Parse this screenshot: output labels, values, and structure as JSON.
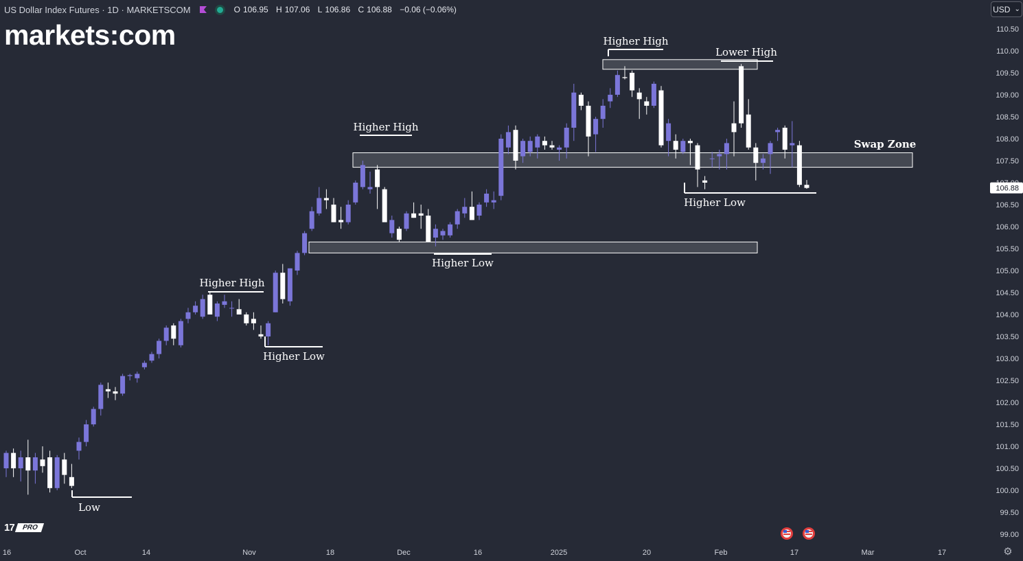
{
  "header": {
    "title": "US Dollar Index Futures · 1D · MARKETSCOM",
    "open_label": "O",
    "open": "106.95",
    "high_label": "H",
    "high": "107.06",
    "low_label": "L",
    "low": "106.86",
    "close_label": "C",
    "close": "106.88",
    "change": "−0.06 (−0.06%)"
  },
  "logo": {
    "text": "markets:com"
  },
  "currency_button": {
    "label": "USD",
    "chevron": "⌄"
  },
  "tv_badge": {
    "mark": "17",
    "pro": "PRO"
  },
  "colors": {
    "background": "#262a36",
    "bull": "#7b76d9",
    "bear": "#ffffff",
    "text": "#d1d4dc"
  },
  "chart_data": {
    "type": "candlestick",
    "ylim": [
      98.85,
      110.9
    ],
    "y_ticks": [
      "110.50",
      "110.00",
      "109.50",
      "109.00",
      "108.50",
      "108.00",
      "107.50",
      "107.00",
      "106.50",
      "106.00",
      "105.50",
      "105.00",
      "104.50",
      "104.00",
      "103.50",
      "103.00",
      "102.50",
      "102.00",
      "101.50",
      "101.00",
      "100.50",
      "100.00",
      "99.50",
      "99.00"
    ],
    "last_price": "106.88",
    "x_labels": [
      "16",
      "Oct",
      "14",
      "Nov",
      "18",
      "Dec",
      "16",
      "2025",
      "20",
      "Feb",
      "17",
      "Mar",
      "17"
    ],
    "candles": [
      [
        100.5,
        100.9,
        100.3,
        100.85
      ],
      [
        100.85,
        100.95,
        100.3,
        100.5
      ],
      [
        100.5,
        100.9,
        100.2,
        100.75
      ],
      [
        100.75,
        101.15,
        99.9,
        100.45
      ],
      [
        100.45,
        100.85,
        100.15,
        100.75
      ],
      [
        100.7,
        101.0,
        100.4,
        100.55
      ],
      [
        100.75,
        100.9,
        99.95,
        100.05
      ],
      [
        100.05,
        100.8,
        100.0,
        100.75
      ],
      [
        100.7,
        100.85,
        100.15,
        100.35
      ],
      [
        100.3,
        100.6,
        100.05,
        100.1
      ],
      [
        100.9,
        101.2,
        100.7,
        101.1
      ],
      [
        101.1,
        101.6,
        101.0,
        101.5
      ],
      [
        101.5,
        101.9,
        101.45,
        101.85
      ],
      [
        101.85,
        102.45,
        101.7,
        102.4
      ],
      [
        102.3,
        102.45,
        102.1,
        102.25
      ],
      [
        102.25,
        102.35,
        102.05,
        102.2
      ],
      [
        102.2,
        102.65,
        102.15,
        102.6
      ],
      [
        102.6,
        102.65,
        102.5,
        102.62
      ],
      [
        102.55,
        102.7,
        102.45,
        102.65
      ],
      [
        102.8,
        102.95,
        102.75,
        102.9
      ],
      [
        102.95,
        103.15,
        102.9,
        103.1
      ],
      [
        103.1,
        103.45,
        103.0,
        103.4
      ],
      [
        103.4,
        103.75,
        103.3,
        103.7
      ],
      [
        103.75,
        103.8,
        103.3,
        103.45
      ],
      [
        103.3,
        103.9,
        103.25,
        103.85
      ],
      [
        103.9,
        104.15,
        103.8,
        104.05
      ],
      [
        104.05,
        104.3,
        104.0,
        104.2
      ],
      [
        103.95,
        104.45,
        103.9,
        104.35
      ],
      [
        104.45,
        104.5,
        104.0,
        104.0
      ],
      [
        103.95,
        104.3,
        103.85,
        104.25
      ],
      [
        104.22,
        104.45,
        104.15,
        104.3
      ],
      [
        104.15,
        104.3,
        103.95,
        104.15
      ],
      [
        104.12,
        104.35,
        104.0,
        104.0
      ],
      [
        104.0,
        104.05,
        103.75,
        103.8
      ],
      [
        103.9,
        104.05,
        103.65,
        103.8
      ],
      [
        103.55,
        103.75,
        103.45,
        103.5
      ],
      [
        103.5,
        103.85,
        103.3,
        103.8
      ],
      [
        104.05,
        105.0,
        104.05,
        104.95
      ],
      [
        104.95,
        105.15,
        104.25,
        104.35
      ],
      [
        104.3,
        105.05,
        104.2,
        105.05
      ],
      [
        105.0,
        105.45,
        104.9,
        105.4
      ],
      [
        105.4,
        105.9,
        105.35,
        105.85
      ],
      [
        105.95,
        106.45,
        105.9,
        106.35
      ],
      [
        106.3,
        106.9,
        106.25,
        106.65
      ],
      [
        106.65,
        106.85,
        106.4,
        106.6
      ],
      [
        106.5,
        106.65,
        106.1,
        106.1
      ],
      [
        106.15,
        106.45,
        105.95,
        106.1
      ],
      [
        106.1,
        106.6,
        106.05,
        106.5
      ],
      [
        106.55,
        107.05,
        106.5,
        107.0
      ],
      [
        106.9,
        107.5,
        106.85,
        107.4
      ],
      [
        106.85,
        107.25,
        106.75,
        106.9
      ],
      [
        107.3,
        107.4,
        106.4,
        106.9
      ],
      [
        106.85,
        106.9,
        106.15,
        106.1
      ],
      [
        105.85,
        106.25,
        105.75,
        106.15
      ],
      [
        105.95,
        106.0,
        105.65,
        105.7
      ],
      [
        105.95,
        106.35,
        105.9,
        106.3
      ],
      [
        106.3,
        106.55,
        106.2,
        106.2
      ],
      [
        106.3,
        106.5,
        105.95,
        106.25
      ],
      [
        106.25,
        106.4,
        105.65,
        105.65
      ],
      [
        105.75,
        106.05,
        105.55,
        105.95
      ],
      [
        105.8,
        105.95,
        105.7,
        105.9
      ],
      [
        105.8,
        106.1,
        105.75,
        106.05
      ],
      [
        106.05,
        106.4,
        105.95,
        106.35
      ],
      [
        106.3,
        106.65,
        106.2,
        106.45
      ],
      [
        106.45,
        106.8,
        106.15,
        106.15
      ],
      [
        106.25,
        106.55,
        106.15,
        106.5
      ],
      [
        106.55,
        106.85,
        106.45,
        106.75
      ],
      [
        106.55,
        106.8,
        106.4,
        106.6
      ],
      [
        106.7,
        108.1,
        106.6,
        108.0
      ],
      [
        107.8,
        108.3,
        107.65,
        108.15
      ],
      [
        108.2,
        108.3,
        107.3,
        107.5
      ],
      [
        107.6,
        108.0,
        107.45,
        107.95
      ],
      [
        107.7,
        108.05,
        107.6,
        107.95
      ],
      [
        107.8,
        108.1,
        107.55,
        108.05
      ],
      [
        107.95,
        108.05,
        107.75,
        107.85
      ],
      [
        107.85,
        107.95,
        107.75,
        107.8
      ],
      [
        107.75,
        107.85,
        107.5,
        107.8
      ],
      [
        107.8,
        108.35,
        107.55,
        108.25
      ],
      [
        108.25,
        109.25,
        107.95,
        109.05
      ],
      [
        109.0,
        109.05,
        108.65,
        108.75
      ],
      [
        108.75,
        108.85,
        107.6,
        108.05
      ],
      [
        108.1,
        108.5,
        107.7,
        108.45
      ],
      [
        108.45,
        108.9,
        108.25,
        108.75
      ],
      [
        108.85,
        109.15,
        108.7,
        109.0
      ],
      [
        109.0,
        109.55,
        108.95,
        109.45
      ],
      [
        109.4,
        109.65,
        109.35,
        109.38
      ],
      [
        109.5,
        109.55,
        108.95,
        109.1
      ],
      [
        109.05,
        109.15,
        108.45,
        108.9
      ],
      [
        108.85,
        108.95,
        108.55,
        108.75
      ],
      [
        108.75,
        109.3,
        108.7,
        109.25
      ],
      [
        109.1,
        109.2,
        107.8,
        107.85
      ],
      [
        107.95,
        108.45,
        107.6,
        108.35
      ],
      [
        107.95,
        108.1,
        107.55,
        107.75
      ],
      [
        107.7,
        108.0,
        107.65,
        107.95
      ],
      [
        107.95,
        108.0,
        107.4,
        107.9
      ],
      [
        107.85,
        107.9,
        106.9,
        107.3
      ],
      [
        107.05,
        107.15,
        106.85,
        107.0
      ],
      [
        107.55,
        107.7,
        107.35,
        107.55
      ],
      [
        107.6,
        107.75,
        107.3,
        107.65
      ],
      [
        107.65,
        108.0,
        107.3,
        107.9
      ],
      [
        108.35,
        108.85,
        107.6,
        108.15
      ],
      [
        109.65,
        109.7,
        108.25,
        108.35
      ],
      [
        108.55,
        108.9,
        107.75,
        107.8
      ],
      [
        107.8,
        107.9,
        107.05,
        107.45
      ],
      [
        107.45,
        107.65,
        107.3,
        107.55
      ],
      [
        107.65,
        107.95,
        107.2,
        107.9
      ],
      [
        108.15,
        108.25,
        107.95,
        108.2
      ],
      [
        108.25,
        108.3,
        107.55,
        107.75
      ],
      [
        107.85,
        108.4,
        107.35,
        107.9
      ],
      [
        107.85,
        107.95,
        106.9,
        106.95
      ],
      [
        106.95,
        107.06,
        106.86,
        106.88
      ]
    ],
    "annotations": [
      {
        "text": "Low"
      },
      {
        "text": "Higher High"
      },
      {
        "text": "Higher Low"
      },
      {
        "text": "Higher High"
      },
      {
        "text": "Higher Low"
      },
      {
        "text": "Higher High"
      },
      {
        "text": "Lower High"
      },
      {
        "text": "Higher Low"
      },
      {
        "text": "Swap Zone"
      }
    ],
    "zones": [
      {
        "from": 105.4,
        "to": 105.65
      },
      {
        "from": 107.35,
        "to": 107.68
      },
      {
        "from": 109.58,
        "to": 109.8
      }
    ]
  }
}
